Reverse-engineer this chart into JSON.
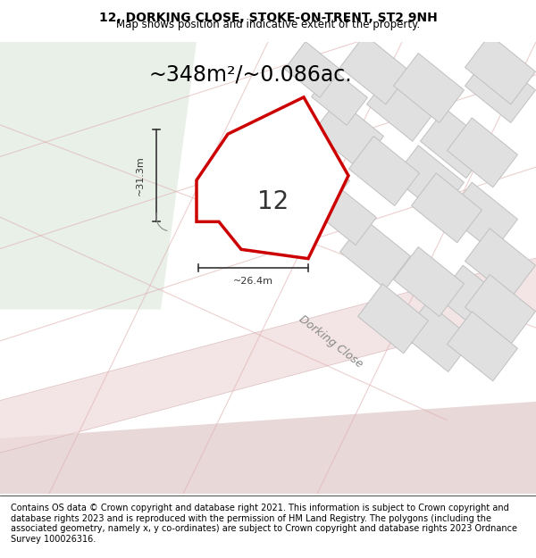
{
  "title_line1": "12, DORKING CLOSE, STOKE-ON-TRENT, ST2 9NH",
  "title_line2": "Map shows position and indicative extent of the property.",
  "area_text": "~348m²/~0.086ac.",
  "width_label": "~26.4m",
  "height_label": "~31.3m",
  "number_label": "12",
  "footer_text": "Contains OS data © Crown copyright and database right 2021. This information is subject to Crown copyright and database rights 2023 and is reproduced with the permission of HM Land Registry. The polygons (including the associated geometry, namely x, y co-ordinates) are subject to Crown copyright and database rights 2023 Ordnance Survey 100026316.",
  "bg_color": "#f0f0f0",
  "map_bg_color": "#f5f5f5",
  "green_area_color": "#e8f0e8",
  "plot_fill_color": "#ffffff",
  "plot_border_color": "#cc0000",
  "neighbor_fill_color": "#e0e0e0",
  "road_color": "#f0e8e8",
  "road_border_color": "#d4a0a0",
  "street_label": "Dorking Close",
  "title_fontsize": 10,
  "subtitle_fontsize": 8.5,
  "area_fontsize": 18,
  "footer_fontsize": 7
}
